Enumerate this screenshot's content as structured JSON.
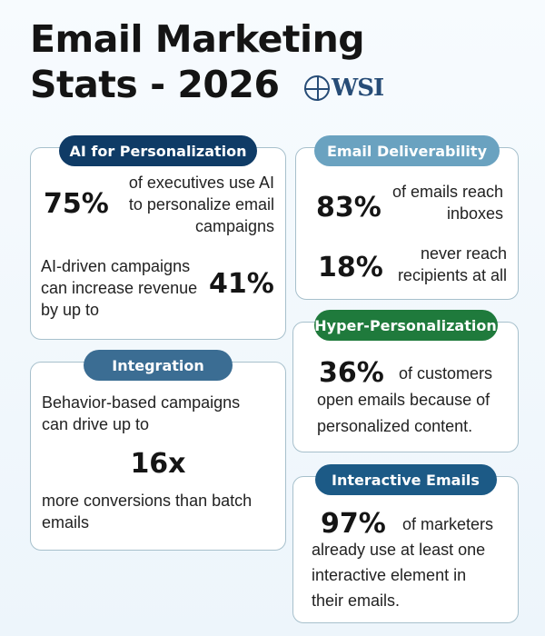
{
  "header": {
    "title_line1": "Email Marketing",
    "title_line2": "Stats - 2026",
    "logo_text": "WSI"
  },
  "cards": {
    "ai_personalization": {
      "label": "AI for Personalization",
      "stat1_value": "75%",
      "stat1_text": "of executives use AI to personalize email campaigns",
      "stat2_text": "AI-driven campaigns can increase revenue by up to",
      "stat2_value": "41%"
    },
    "deliverability": {
      "label": "Email Deliverability",
      "stat1_value": "83%",
      "stat1_text": "of emails reach inboxes",
      "stat2_value": "18%",
      "stat2_text": "never reach recipients at all"
    },
    "integration": {
      "label": "Integration",
      "text_before": "Behavior-based campaigns can drive up to",
      "value": "16x",
      "text_after": "more conversions than batch emails"
    },
    "hyper_personalization": {
      "label": "Hyper-Personalization",
      "value": "36%",
      "text": "of customers open emails because of personalized content."
    },
    "interactive": {
      "label": "Interactive Emails",
      "value": "97%",
      "text": "of marketers already use at least one interactive element in their emails."
    }
  },
  "colors": {
    "navy": "#0f3b66",
    "light_blue": "#6aa2c0",
    "slate_blue": "#3b6d93",
    "green": "#1f7a3c",
    "teal_blue": "#1c5a86"
  }
}
